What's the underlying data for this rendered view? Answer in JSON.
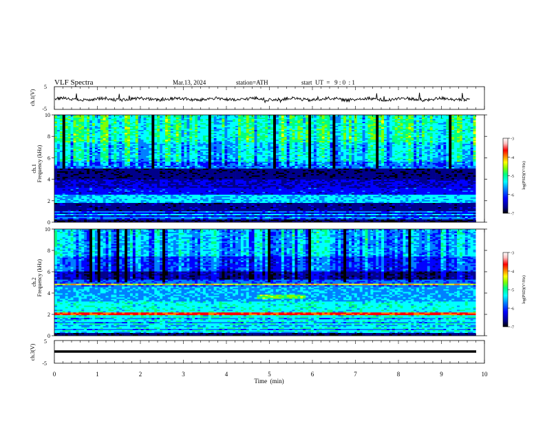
{
  "header": {
    "title": "VLF  Spectra",
    "date": "Mar.13, 2024",
    "station": "station=ATH",
    "start": "start  UT  =   9 : 0  : 1"
  },
  "colors": {
    "colormap": [
      "#000000",
      "#00008b",
      "#0000ff",
      "#0080ff",
      "#00ffff",
      "#00ff80",
      "#80ff00",
      "#ffff00",
      "#ff8000",
      "#ff0000",
      "#ffc0c0",
      "#ffffff"
    ]
  },
  "chart_data": [
    {
      "type": "line",
      "name": "ch.1 waveform",
      "ylabel": "ch.1(V)",
      "y_ticks": [
        "5",
        "-5"
      ],
      "ylim": [
        -5,
        5
      ],
      "x_range_min": [
        0,
        9.8
      ],
      "level_description": "noisy trace near -0.5 V with occasional spikes"
    },
    {
      "type": "heatmap",
      "name": "ch.1 spectrogram",
      "ylabel": "Frequency (kHz)",
      "channel_label": "ch.1",
      "y_ticks": [
        "0",
        "2",
        "4",
        "6",
        "8",
        "10"
      ],
      "ylim": [
        0,
        10
      ],
      "x_range_min": [
        0,
        9.8
      ],
      "colorbar": {
        "label": "log(PSD)(V²/Hz)",
        "ticks": [
          "-3",
          "-4",
          "-5",
          "-6",
          "-7"
        ],
        "range": [
          -7,
          -3
        ]
      }
    },
    {
      "type": "heatmap",
      "name": "ch.2 spectrogram",
      "ylabel": "Frequency (kHz)",
      "channel_label": "ch.2",
      "y_ticks": [
        "0",
        "2",
        "4",
        "6",
        "8",
        "10"
      ],
      "ylim": [
        0,
        10
      ],
      "x_range_min": [
        0,
        9.8
      ],
      "colorbar": {
        "label": "log(PSD)(V²/Hz)",
        "ticks": [
          "-3",
          "-4",
          "-5",
          "-6",
          "-7"
        ],
        "range": [
          -7,
          -3
        ]
      },
      "features": [
        "strong line near 2 kHz",
        "band near 3.5 kHz"
      ]
    },
    {
      "type": "line",
      "name": "ch.3 waveform",
      "ylabel": "ch.3(V)",
      "y_ticks": [
        "5",
        "-5"
      ],
      "ylim": [
        -5,
        5
      ],
      "x_range_min": [
        0,
        9.8
      ],
      "level_description": "flat thick trace near -2 V"
    }
  ],
  "x_axis": {
    "label": "Time  (min)",
    "ticks": [
      "0",
      "1",
      "2",
      "3",
      "4",
      "5",
      "6",
      "7",
      "8",
      "9",
      "10"
    ],
    "xlim": [
      0,
      10
    ]
  }
}
